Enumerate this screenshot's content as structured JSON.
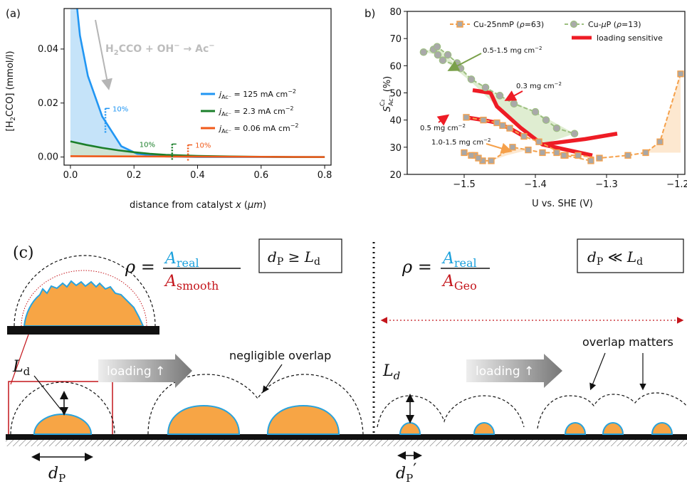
{
  "chart_data": [
    {
      "panel": "(a)",
      "type": "line",
      "xlabel": "distance from catalyst x (μm)",
      "ylabel": "[H₂CCO] (mmol/l)",
      "xlim": [
        -0.02,
        0.82
      ],
      "ylim": [
        -0.003,
        0.055
      ],
      "xticks": [
        "0.0",
        "0.2",
        "0.4",
        "0.6",
        "0.8"
      ],
      "yticks": [
        "0.00",
        "0.02",
        "0.04"
      ],
      "annotation": "H₂CCO + OH⁻ → Ac⁻",
      "series": [
        {
          "name": "j_Ac⁻ = 125 mA cm⁻²",
          "color": "#2196f3",
          "x": [
            0.0,
            0.015,
            0.03,
            0.055,
            0.1,
            0.16,
            0.21,
            0.3,
            0.4,
            0.6,
            0.8
          ],
          "y": [
            0.07,
            0.062,
            0.045,
            0.03,
            0.015,
            0.004,
            0.0012,
            0.0002,
            0.0,
            0.0,
            0.0
          ],
          "marker_label": "10%",
          "marker_x": 0.11
        },
        {
          "name": "j_Ac⁻ = 2.3 mA cm⁻²",
          "color": "#1b7f2a",
          "x": [
            0.0,
            0.05,
            0.1,
            0.15,
            0.2,
            0.25,
            0.3,
            0.4,
            0.5,
            0.6,
            0.7,
            0.8
          ],
          "y": [
            0.0058,
            0.0045,
            0.0034,
            0.0025,
            0.0018,
            0.0012,
            0.0008,
            0.0004,
            0.0002,
            0.0001,
            0.0,
            0.0
          ],
          "marker_label": "10%",
          "marker_x": 0.32
        },
        {
          "name": "j_Ac⁻ = 0.06 mA cm⁻²",
          "color": "#f05a1a",
          "x": [
            0.0,
            0.8
          ],
          "y": [
            0.0003,
            0.0
          ],
          "marker_label": "10%",
          "marker_x": 0.37
        }
      ]
    },
    {
      "panel": "b)",
      "type": "line",
      "xlabel": "U vs. SHE (V)",
      "ylabel": "S_Ac⁻^C₂ (%)",
      "xlim": [
        -1.58,
        -1.19
      ],
      "ylim": [
        20,
        80
      ],
      "xticks": [
        "−1.5",
        "−1.4",
        "−1.3",
        "−1.2"
      ],
      "yticks": [
        "20",
        "30",
        "40",
        "50",
        "60",
        "70",
        "80"
      ],
      "series": [
        {
          "name": "Cu-25nmP (ρ=63)",
          "color": "#f5a04a",
          "marker": "square",
          "segments": [
            {
              "x": [
                -1.497,
                -1.473,
                -1.454,
                -1.446,
                -1.436,
                -1.416,
                -1.395,
                -1.358,
                -1.322
              ],
              "y": [
                41,
                40,
                39,
                38,
                37,
                34,
                32,
                27,
                25
              ]
            },
            {
              "x": [
                -1.485,
                -1.474,
                -1.462,
                -1.432,
                -1.41,
                -1.39,
                -1.37,
                -1.36,
                -1.34,
                -1.31,
                -1.27,
                -1.245,
                -1.225,
                -1.196
              ],
              "y": [
                27,
                25,
                25,
                30,
                29,
                28,
                28,
                27,
                27,
                26,
                27,
                28,
                32,
                57
              ]
            },
            {
              "x": [
                -1.5,
                -1.49,
                -1.48
              ],
              "y": [
                28,
                27,
                26
              ]
            }
          ]
        },
        {
          "name": "Cu-μP (ρ=13)",
          "color": "#9cbf7f",
          "marker": "circle",
          "segments": [
            {
              "x": [
                -1.557,
                -1.543,
                -1.538,
                -1.523,
                -1.51,
                -1.505,
                -1.49,
                -1.47,
                -1.45,
                -1.43,
                -1.4,
                -1.385,
                -1.37,
                -1.345
              ],
              "y": [
                65,
                66,
                67,
                64,
                61,
                59,
                55,
                52,
                49,
                46,
                43,
                40,
                37,
                35
              ]
            },
            {
              "x": [
                -1.537,
                -1.53,
                -1.51
              ],
              "y": [
                64,
                62,
                60
              ]
            }
          ]
        },
        {
          "name": "loading sensitive",
          "color": "#ee1c25",
          "marker": "none",
          "segments": [
            {
              "x": [
                -1.488,
                -1.463,
                -1.454,
                -1.42,
                -1.39,
                -1.32
              ],
              "y": [
                51,
                50,
                45,
                37,
                31,
                27
              ]
            },
            {
              "x": [
                -1.497,
                -1.473,
                -1.454,
                -1.446,
                -1.436,
                -1.416
              ],
              "y": [
                41,
                40,
                39,
                38,
                37,
                34
              ]
            },
            {
              "x": [
                -1.39,
                -1.36,
                -1.33,
                -1.285
              ],
              "y": [
                31,
                32,
                33,
                35
              ]
            }
          ]
        }
      ],
      "annotations": [
        "0.5-1.5 mg cm⁻²",
        "0.3 mg cm⁻²",
        "0.5 mg cm⁻²",
        "1.0-1.5 mg cm⁻²"
      ]
    }
  ],
  "schematic": {
    "panel_label": "(c)",
    "left_formula_lhs": "ρ =",
    "left_formula_num": "A_real",
    "left_formula_den": "A_smooth",
    "left_box": "d_P ≥ L_d",
    "right_formula_lhs": "ρ =",
    "right_formula_num": "A_real",
    "right_formula_den": "A_Geo",
    "right_box": "d_P ≪ L_d",
    "loading_label": "loading ↑",
    "negligible_overlap": "negligible overlap",
    "overlap_matters": "overlap matters",
    "ld_left": "L_d",
    "ld_right": "L_d",
    "dp_left": "d_P",
    "dp_right": "d_P′",
    "colors": {
      "particle": "#f7a545",
      "edge": "#29a3dd",
      "accent_blue": "#1aa0dc",
      "accent_red": "#c4161c"
    }
  }
}
